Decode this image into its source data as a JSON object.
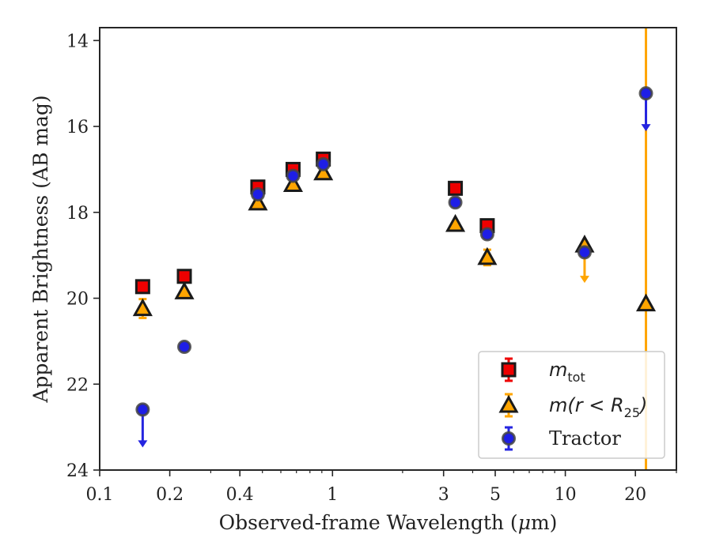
{
  "chart_data": {
    "type": "scatter",
    "xscale": "log",
    "xlim": [
      0.1,
      30
    ],
    "ylim": [
      24,
      13.7
    ],
    "y_inverted": true,
    "xlabel_text": "Observed-frame Wavelength (",
    "xlabel_mu": "μ",
    "xlabel_suffix": "m)",
    "ylabel": "Apparent Brightness (AB mag)",
    "xticks": [
      0.1,
      0.2,
      0.4,
      1,
      3,
      5,
      10,
      20
    ],
    "xtick_labels": [
      "0.1",
      "0.2",
      "0.4",
      "1",
      "3",
      "5",
      "10",
      "20"
    ],
    "yticks": [
      14,
      16,
      18,
      20,
      22,
      24
    ],
    "ytick_labels": [
      "14",
      "16",
      "18",
      "20",
      "22",
      "24"
    ],
    "legend_position": "lower right",
    "legend": [
      {
        "marker": "square",
        "face": "#ee0000",
        "errcolor": "#ee0000",
        "main": "m",
        "sub": "tot",
        "tail": ""
      },
      {
        "marker": "triangle",
        "face": "#ffa500",
        "errcolor": "#ffa500",
        "main": "m(r < R",
        "sub": "25",
        "tail": ")"
      },
      {
        "marker": "circle",
        "face": "#1e1ee6",
        "errcolor": "#2525e0",
        "plain": "Tractor"
      }
    ],
    "series": [
      {
        "marker": "square",
        "face": "#ee0000",
        "edge": "#1a1a1a",
        "errcolor": "#ee0000",
        "points": [
          {
            "x": 0.153,
            "y": 19.73
          },
          {
            "x": 0.231,
            "y": 19.49
          },
          {
            "x": 0.478,
            "y": 17.41
          },
          {
            "x": 0.677,
            "y": 17.0
          },
          {
            "x": 0.913,
            "y": 16.76
          },
          {
            "x": 3.37,
            "y": 17.44
          },
          {
            "x": 4.62,
            "y": 18.31
          }
        ]
      },
      {
        "marker": "triangle",
        "face": "#ffa500",
        "edge": "#1a1a1a",
        "errcolor": "#ffa500",
        "points": [
          {
            "x": 0.153,
            "y": 20.24,
            "err": 0.22
          },
          {
            "x": 0.231,
            "y": 19.85
          },
          {
            "x": 0.478,
            "y": 17.78
          },
          {
            "x": 0.677,
            "y": 17.35
          },
          {
            "x": 0.913,
            "y": 17.08
          },
          {
            "x": 3.37,
            "y": 18.28
          },
          {
            "x": 4.62,
            "y": 19.05,
            "err": 0.18
          },
          {
            "x": 12.1,
            "y": 18.76,
            "upper_limit": true
          },
          {
            "x": 22.2,
            "y": 20.13,
            "big_error": true
          }
        ]
      },
      {
        "marker": "circle",
        "face": "#1e1ee6",
        "edge": "#444444",
        "errcolor": "#2525e0",
        "points": [
          {
            "x": 0.153,
            "y": 22.59,
            "upper_limit": true
          },
          {
            "x": 0.231,
            "y": 21.13
          },
          {
            "x": 0.478,
            "y": 17.58
          },
          {
            "x": 0.677,
            "y": 17.15
          },
          {
            "x": 0.913,
            "y": 16.88
          },
          {
            "x": 3.37,
            "y": 17.77
          },
          {
            "x": 4.62,
            "y": 18.51
          },
          {
            "x": 12.1,
            "y": 18.93
          },
          {
            "x": 22.2,
            "y": 15.23,
            "upper_limit": true
          }
        ]
      }
    ]
  }
}
